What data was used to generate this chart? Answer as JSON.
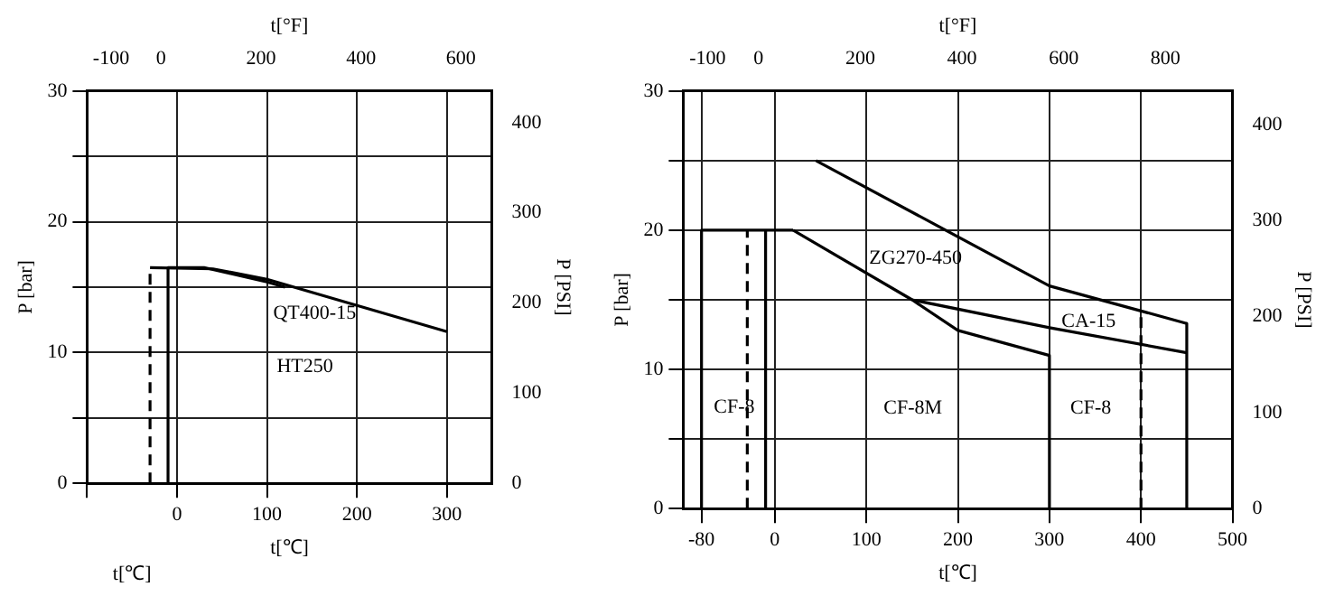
{
  "chart_data": [
    {
      "type": "line",
      "xlabel": "t[℃]",
      "x2label": "t[°F]",
      "ylabel": "P [bar]",
      "y2label": "P [PSI]",
      "xlim": [
        -100,
        350
      ],
      "xticks": [
        {
          "value": -100,
          "label": null
        },
        0,
        100,
        200,
        300
      ],
      "x2lim": [
        -148,
        662
      ],
      "x2ticks": [
        -100,
        0,
        200,
        400,
        600
      ],
      "ylim": [
        0,
        30
      ],
      "yticks": [
        0,
        {
          "value": 5,
          "label": null
        },
        10,
        {
          "value": 15,
          "label": null
        },
        20,
        {
          "value": 25,
          "label": null
        },
        30
      ],
      "y2lim": [
        0,
        435
      ],
      "y2ticks": [
        0,
        100,
        200,
        300,
        400
      ],
      "grid": true,
      "legend": false,
      "marker": "none",
      "series": [
        {
          "color": "#000000",
          "line_style": "dashed",
          "x": [
            -30,
            -30
          ],
          "values": [
            0,
            16.5
          ]
        },
        {
          "color": "#000000",
          "line_style": "solid",
          "x": [
            -30,
            40,
            100,
            200,
            300
          ],
          "values": [
            16.5,
            16.4,
            15.6,
            13.6,
            11.6
          ]
        },
        {
          "color": "#000000",
          "line_style": "solid",
          "x": [
            -10,
            -10,
            30,
            100,
            120
          ],
          "values": [
            0,
            16.5,
            16.5,
            15.4,
            15.0
          ]
        }
      ],
      "annotations": [
        "QT400-15",
        "HT250",
        "t[℃]"
      ]
    },
    {
      "type": "line",
      "xlabel": "t[℃]",
      "x2label": "t[°F]",
      "ylabel": "P [bar]",
      "y2label": "P [PSI]",
      "xlim": [
        -100,
        500
      ],
      "xticks": [
        -80,
        0,
        100,
        200,
        300,
        400,
        500
      ],
      "x2lim": [
        -148,
        932
      ],
      "x2ticks": [
        -100,
        0,
        200,
        400,
        600,
        800
      ],
      "ylim": [
        0,
        30
      ],
      "yticks": [
        0,
        {
          "value": 5,
          "label": null
        },
        10,
        {
          "value": 15,
          "label": null
        },
        20,
        {
          "value": 25,
          "label": null
        },
        30
      ],
      "y2lim": [
        0,
        435
      ],
      "y2ticks": [
        0,
        100,
        200,
        300,
        400
      ],
      "grid": true,
      "legend": false,
      "marker": "none",
      "series": [
        {
          "color": "#000000",
          "line_style": "solid",
          "x": [
            -80,
            -80,
            20
          ],
          "values": [
            0,
            20,
            20
          ]
        },
        {
          "color": "#000000",
          "line_style": "dashed",
          "x": [
            -30,
            -30
          ],
          "values": [
            0,
            20
          ]
        },
        {
          "color": "#000000",
          "line_style": "solid",
          "x": [
            -10,
            -10
          ],
          "values": [
            0,
            20
          ]
        },
        {
          "color": "#000000",
          "line_style": "solid",
          "x": [
            20,
            150,
            200,
            300,
            300
          ],
          "values": [
            20,
            15,
            12.8,
            11,
            0
          ]
        },
        {
          "color": "#000000",
          "line_style": "solid",
          "x": [
            45,
            300,
            450,
            450
          ],
          "values": [
            25,
            16,
            13.3,
            0
          ]
        },
        {
          "color": "#000000",
          "line_style": "solid",
          "x": [
            150,
            300,
            450
          ],
          "values": [
            15,
            13,
            11.2
          ]
        },
        {
          "color": "#000000",
          "line_style": "dashed",
          "x": [
            400,
            400
          ],
          "values": [
            0,
            14.2
          ]
        }
      ],
      "annotations": [
        "ZG270-450",
        "CA-15",
        "CF-8",
        "CF-8M",
        "CF-8"
      ]
    }
  ]
}
